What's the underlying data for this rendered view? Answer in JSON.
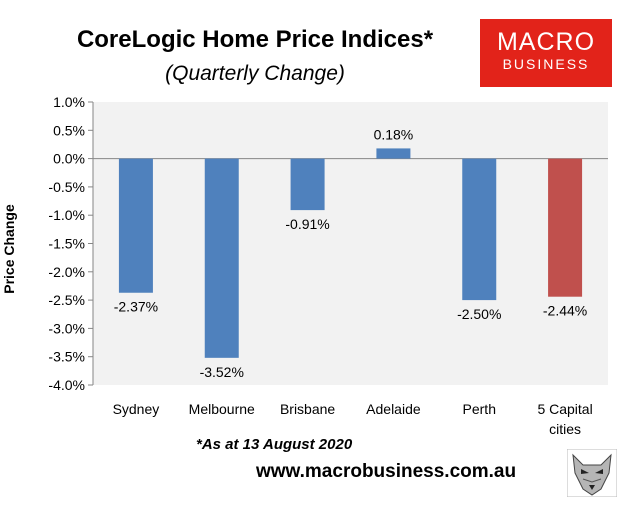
{
  "chart_data": {
    "type": "bar",
    "title": "CoreLogic Home Price Indices*",
    "subtitle": "(Quarterly Change)",
    "ylabel": "Price Change",
    "xlabel": "",
    "categories": [
      "Sydney",
      "Melbourne",
      "Brisbane",
      "Adelaide",
      "Perth",
      "5 Capital cities"
    ],
    "values": [
      -2.37,
      -3.52,
      -0.91,
      0.18,
      -2.5,
      -2.44
    ],
    "data_labels": [
      "-2.37%",
      "-3.52%",
      "-0.91%",
      "0.18%",
      "-2.50%",
      "-2.44%"
    ],
    "ylim": [
      -4.0,
      1.0
    ],
    "yticks": [
      "1.0%",
      "0.5%",
      "0.0%",
      "-0.5%",
      "-1.0%",
      "-1.5%",
      "-2.0%",
      "-2.5%",
      "-3.0%",
      "-3.5%",
      "-4.0%"
    ],
    "colors": [
      "#4f81bd",
      "#4f81bd",
      "#4f81bd",
      "#4f81bd",
      "#4f81bd",
      "#c0504d"
    ],
    "plot_background": "#f2f2f2",
    "grid": false,
    "legend": "none"
  },
  "logo": {
    "line1": "MACRO",
    "line2": "BUSINESS",
    "color": "#e2231a"
  },
  "footnote": "*As at 13 August 2020",
  "website": "www.macrobusiness.com.au"
}
